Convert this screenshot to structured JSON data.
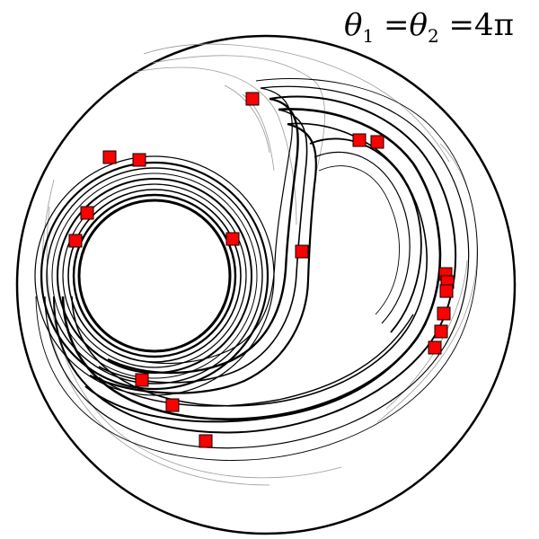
{
  "annotation": {
    "text": "θ1 =θ2 =4π",
    "theta": "θ",
    "sub1": "1",
    "sub2": "2",
    "eq": "=",
    "value": "4π"
  },
  "colors": {
    "background": "#ffffff",
    "stroke": "#000000",
    "marker": "#ff0000",
    "faint": "#9a9a9a"
  },
  "markers_count": 19
}
